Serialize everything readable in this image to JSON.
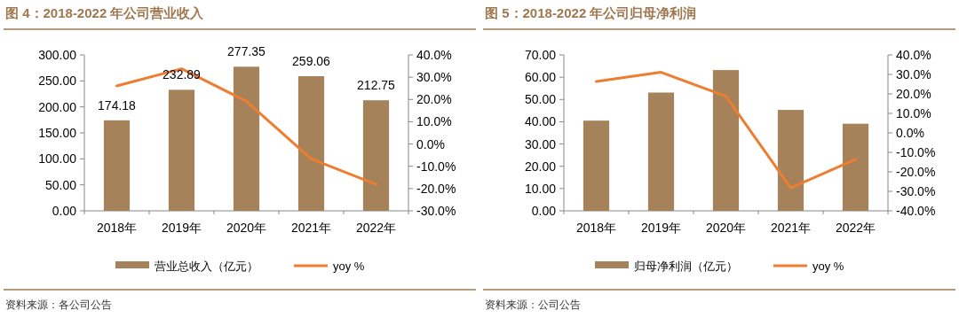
{
  "chart_data": [
    {
      "type": "bar",
      "title": "图 4：2018-2022 年公司营业收入",
      "categories": [
        "2018年",
        "2019年",
        "2020年",
        "2021年",
        "2022年"
      ],
      "series": [
        {
          "name": "营业总收入（亿元）",
          "color": "#a6825a",
          "values": [
            174.18,
            232.89,
            277.35,
            259.06,
            212.75
          ],
          "value_labels": [
            "174.18",
            "232.89",
            "277.35",
            "259.06",
            "212.75"
          ]
        },
        {
          "name": "yoy %",
          "type": "line",
          "axis": "y2",
          "color": "#ed7d31",
          "values": [
            26.1,
            33.8,
            19.2,
            -6.7,
            -18.1
          ]
        }
      ],
      "ylim": [
        0,
        300
      ],
      "yticks": [
        {
          "value": 0,
          "label": "0.00"
        },
        {
          "value": 50,
          "label": "50.00"
        },
        {
          "value": 100,
          "label": "100.00"
        },
        {
          "value": 150,
          "label": "150.00"
        },
        {
          "value": 200,
          "label": "200.00"
        },
        {
          "value": 250,
          "label": "250.00"
        },
        {
          "value": 300,
          "label": "300.00"
        }
      ],
      "y2lim": [
        -30,
        40
      ],
      "y2ticks": [
        {
          "value": -30,
          "label": "-30.0%"
        },
        {
          "value": -20,
          "label": "-20.0%"
        },
        {
          "value": -10,
          "label": "-10.0%"
        },
        {
          "value": 0,
          "label": "0.0%"
        },
        {
          "value": 10,
          "label": "10.0%"
        },
        {
          "value": 20,
          "label": "20.0%"
        },
        {
          "value": 30,
          "label": "30.0%"
        },
        {
          "value": 40,
          "label": "40.0%"
        }
      ],
      "legend": "bottom",
      "grid": false,
      "annotations": [
        "资料来源：各公司公告"
      ]
    },
    {
      "type": "bar",
      "title": "图 5：2018-2022 年公司归母净利润",
      "categories": [
        "2018年",
        "2019年",
        "2020年",
        "2021年",
        "2022年"
      ],
      "series": [
        {
          "name": "归母净利润（亿元）",
          "color": "#a6825a",
          "values": [
            40.5,
            53.1,
            63.2,
            45.3,
            39.1
          ]
        },
        {
          "name": "yoy %",
          "type": "line",
          "axis": "y2",
          "color": "#ed7d31",
          "values": [
            26.4,
            31.1,
            18.8,
            -28.2,
            -13.6
          ]
        }
      ],
      "ylim": [
        0,
        70
      ],
      "yticks": [
        {
          "value": 0,
          "label": "0.00"
        },
        {
          "value": 10,
          "label": "10.00"
        },
        {
          "value": 20,
          "label": "20.00"
        },
        {
          "value": 30,
          "label": "30.00"
        },
        {
          "value": 40,
          "label": "40.00"
        },
        {
          "value": 50,
          "label": "50.00"
        },
        {
          "value": 60,
          "label": "60.00"
        },
        {
          "value": 70,
          "label": "70.00"
        }
      ],
      "y2lim": [
        -40,
        40
      ],
      "y2ticks": [
        {
          "value": -40,
          "label": "-40.0%"
        },
        {
          "value": -30,
          "label": "-30.0%"
        },
        {
          "value": -20,
          "label": "-20.0%"
        },
        {
          "value": -10,
          "label": "-10.0%"
        },
        {
          "value": 0,
          "label": "0.0%"
        },
        {
          "value": 10,
          "label": "10.0%"
        },
        {
          "value": 20,
          "label": "20.0%"
        },
        {
          "value": 30,
          "label": "30.0%"
        },
        {
          "value": 40,
          "label": "40.0%"
        }
      ],
      "legend": "bottom",
      "grid": false,
      "annotations": [
        "资料来源：公司公告"
      ]
    }
  ]
}
